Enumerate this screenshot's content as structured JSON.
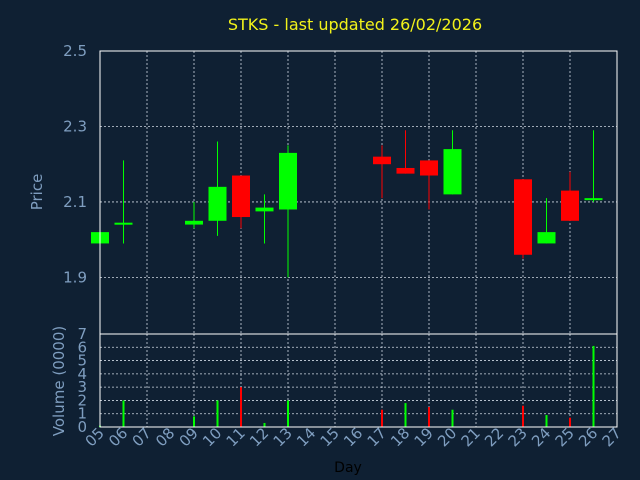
{
  "colors": {
    "background": "#0f2033",
    "up": "#00ff00",
    "down": "#ff0000",
    "title": "#f2f21a",
    "axis_text": "#7f9ec0",
    "grid": "#cfd8e3",
    "frame": "#ffffff"
  },
  "chart_data": [
    {
      "type": "candlestick",
      "title": "STKS - last updated 26/02/2026",
      "ylabel": "Price",
      "ylim": [
        1.75,
        2.5
      ],
      "yticks": [
        1.9,
        2.1,
        2.3,
        2.5
      ],
      "ytick_labels": [
        "1.9",
        "2.1",
        "2.3",
        "2.5"
      ],
      "grid": true,
      "x": [
        "05",
        "06",
        "07",
        "08",
        "09",
        "10",
        "11",
        "12",
        "13",
        "14",
        "15",
        "16",
        "17",
        "18",
        "19",
        "20",
        "21",
        "22",
        "23",
        "24",
        "25",
        "26",
        "27"
      ],
      "candles": [
        {
          "day": "05",
          "open": 1.99,
          "high": 2.02,
          "low": 1.99,
          "close": 2.02
        },
        {
          "day": "06",
          "open": 2.04,
          "high": 2.21,
          "low": 1.99,
          "close": 2.045
        },
        {
          "day": "09",
          "open": 2.04,
          "high": 2.1,
          "low": 2.03,
          "close": 2.05
        },
        {
          "day": "10",
          "open": 2.05,
          "high": 2.26,
          "low": 2.01,
          "close": 2.14
        },
        {
          "day": "11",
          "open": 2.17,
          "high": 2.17,
          "low": 2.03,
          "close": 2.06
        },
        {
          "day": "12",
          "open": 2.075,
          "high": 2.12,
          "low": 1.99,
          "close": 2.085
        },
        {
          "day": "13",
          "open": 2.08,
          "high": 2.25,
          "low": 1.9,
          "close": 2.23
        },
        {
          "day": "17",
          "open": 2.22,
          "high": 2.25,
          "low": 2.11,
          "close": 2.2
        },
        {
          "day": "18",
          "open": 2.19,
          "high": 2.29,
          "low": 2.175,
          "close": 2.175
        },
        {
          "day": "19",
          "open": 2.21,
          "high": 2.21,
          "low": 2.08,
          "close": 2.17
        },
        {
          "day": "20",
          "open": 2.12,
          "high": 2.29,
          "low": 2.12,
          "close": 2.24
        },
        {
          "day": "23",
          "open": 2.16,
          "high": 2.16,
          "low": 1.95,
          "close": 1.96
        },
        {
          "day": "24",
          "open": 1.99,
          "high": 2.11,
          "low": 1.99,
          "close": 2.02
        },
        {
          "day": "25",
          "open": 2.13,
          "high": 2.18,
          "low": 2.05,
          "close": 2.05
        },
        {
          "day": "26",
          "open": 2.105,
          "high": 2.29,
          "low": 2.1,
          "close": 2.11
        }
      ]
    },
    {
      "type": "bar",
      "ylabel": "Volume (0000)",
      "xlabel": "Day",
      "ylim": [
        0,
        7
      ],
      "yticks": [
        0,
        1,
        2,
        3,
        4,
        5,
        6,
        7
      ],
      "ytick_labels": [
        "0",
        "1",
        "2",
        "3",
        "4",
        "5",
        "6",
        "7"
      ],
      "grid": true,
      "x": [
        "05",
        "06",
        "07",
        "08",
        "09",
        "10",
        "11",
        "12",
        "13",
        "14",
        "15",
        "16",
        "17",
        "18",
        "19",
        "20",
        "21",
        "22",
        "23",
        "24",
        "25",
        "26",
        "27"
      ],
      "volumes": [
        {
          "day": "05",
          "value": 0.1,
          "color": "#00ff00"
        },
        {
          "day": "06",
          "value": 2.0,
          "color": "#00ff00"
        },
        {
          "day": "09",
          "value": 0.8,
          "color": "#00ff00"
        },
        {
          "day": "10",
          "value": 2.0,
          "color": "#00ff00"
        },
        {
          "day": "11",
          "value": 3.0,
          "color": "#ff0000"
        },
        {
          "day": "12",
          "value": 0.3,
          "color": "#00ff00"
        },
        {
          "day": "13",
          "value": 2.0,
          "color": "#00ff00"
        },
        {
          "day": "17",
          "value": 1.3,
          "color": "#ff0000"
        },
        {
          "day": "18",
          "value": 1.8,
          "color": "#00ff00"
        },
        {
          "day": "19",
          "value": 1.5,
          "color": "#ff0000"
        },
        {
          "day": "20",
          "value": 1.3,
          "color": "#00ff00"
        },
        {
          "day": "23",
          "value": 1.6,
          "color": "#ff0000"
        },
        {
          "day": "24",
          "value": 0.9,
          "color": "#00ff00"
        },
        {
          "day": "25",
          "value": 0.7,
          "color": "#ff0000"
        },
        {
          "day": "26",
          "value": 6.1,
          "color": "#00ff00"
        }
      ]
    }
  ]
}
